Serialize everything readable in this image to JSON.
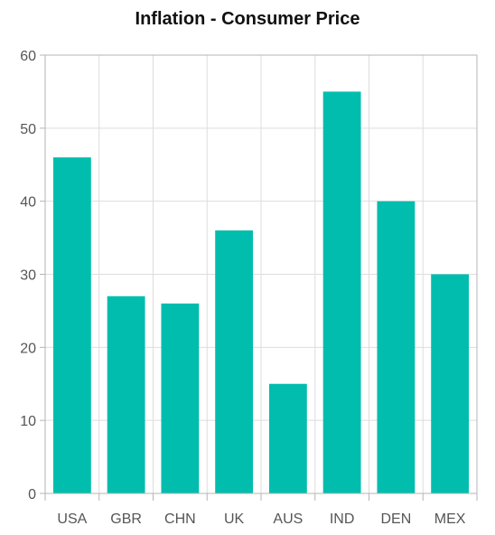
{
  "chart_data": {
    "type": "bar",
    "title": "Inflation - Consumer Price",
    "categories": [
      "USA",
      "GBR",
      "CHN",
      "UK",
      "AUS",
      "IND",
      "DEN",
      "MEX"
    ],
    "values": [
      46,
      27,
      26,
      36,
      15,
      55,
      40,
      30
    ],
    "ylim": [
      0,
      60
    ],
    "yticks": [
      0,
      10,
      20,
      30,
      40,
      50,
      60
    ],
    "xlabel": "",
    "ylabel": "",
    "grid": true,
    "legend": "none",
    "bar_color": "#00bdae"
  }
}
